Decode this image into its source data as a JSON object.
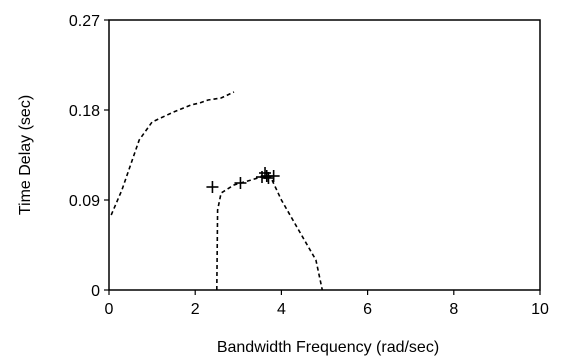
{
  "chart_data": {
    "type": "line",
    "title": "",
    "xlabel": "Bandwidth Frequency (rad/sec)",
    "ylabel": "Time Delay (sec)",
    "xlim": [
      0,
      10
    ],
    "ylim": [
      0,
      0.27
    ],
    "xticks": [
      0,
      2,
      4,
      6,
      8,
      10
    ],
    "yticks": [
      0,
      0.09,
      0.18,
      0.27
    ],
    "xtick_labels": [
      "0",
      "2",
      "4",
      "6",
      "8",
      "10"
    ],
    "ytick_labels": [
      "0",
      "0.09",
      "0.18",
      "0.27"
    ],
    "grid": false,
    "legend": "none",
    "series": [
      {
        "style": "dashed",
        "points": [
          [
            0.05,
            0.075
          ],
          [
            0.3,
            0.1
          ],
          [
            0.7,
            0.15
          ],
          [
            1.0,
            0.168
          ],
          [
            1.5,
            0.178
          ],
          [
            1.9,
            0.185
          ],
          [
            2.1,
            0.187
          ],
          [
            2.3,
            0.19
          ],
          [
            2.6,
            0.192
          ],
          [
            2.9,
            0.198
          ]
        ]
      },
      {
        "style": "dashed",
        "points": [
          [
            2.5,
            0.0
          ],
          [
            2.52,
            0.08
          ],
          [
            2.6,
            0.097
          ],
          [
            2.9,
            0.105
          ],
          [
            3.3,
            0.11
          ],
          [
            3.6,
            0.114
          ],
          [
            3.75,
            0.113
          ],
          [
            4.0,
            0.09
          ],
          [
            4.4,
            0.06
          ],
          [
            4.8,
            0.03
          ],
          [
            4.95,
            0.0
          ]
        ]
      },
      {
        "style": "markers",
        "marker": "plus",
        "points": [
          [
            2.4,
            0.103
          ],
          [
            3.05,
            0.107
          ],
          [
            3.55,
            0.113
          ],
          [
            3.62,
            0.117
          ],
          [
            3.66,
            0.114
          ],
          [
            3.7,
            0.112
          ],
          [
            3.82,
            0.114
          ]
        ]
      }
    ]
  }
}
